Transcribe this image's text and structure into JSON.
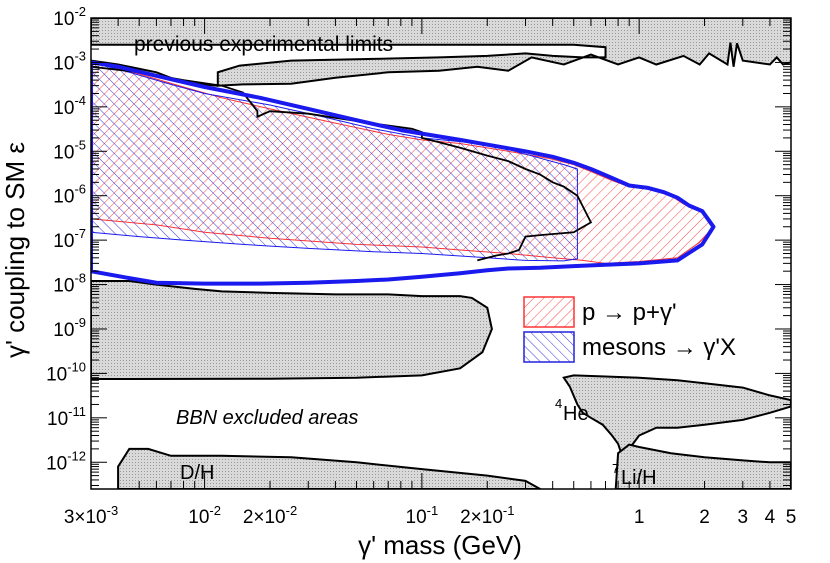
{
  "chart_data": {
    "type": "area",
    "title": "",
    "xlabel": "γ' mass (GeV)",
    "ylabel": "γ' coupling to SM ε",
    "xscale": "log",
    "yscale": "log",
    "xlim": [
      0.003,
      5
    ],
    "ylim": [
      2.5e-13,
      0.01
    ],
    "x_ticks": [
      {
        "v": 0.003,
        "base": "3×10",
        "exp": "-3"
      },
      {
        "v": 0.01,
        "base": "10",
        "exp": "-2"
      },
      {
        "v": 0.02,
        "base": "2×10",
        "exp": "-2"
      },
      {
        "v": 0.1,
        "base": "10",
        "exp": "-1"
      },
      {
        "v": 0.2,
        "base": "2×10",
        "exp": "-1"
      },
      {
        "v": 1,
        "base": "1",
        "exp": ""
      },
      {
        "v": 2,
        "base": "2",
        "exp": ""
      },
      {
        "v": 3,
        "base": "3",
        "exp": ""
      },
      {
        "v": 4,
        "base": "4",
        "exp": ""
      },
      {
        "v": 5,
        "base": "5",
        "exp": ""
      }
    ],
    "y_ticks": [
      {
        "v": 0.01,
        "base": "10",
        "exp": "-2"
      },
      {
        "v": 0.001,
        "base": "10",
        "exp": "-3"
      },
      {
        "v": 0.0001,
        "base": "10",
        "exp": "-4"
      },
      {
        "v": 1e-05,
        "base": "10",
        "exp": "-5"
      },
      {
        "v": 1e-06,
        "base": "10",
        "exp": "-6"
      },
      {
        "v": 1e-07,
        "base": "10",
        "exp": "-7"
      },
      {
        "v": 1e-08,
        "base": "10",
        "exp": "-8"
      },
      {
        "v": 1e-09,
        "base": "10",
        "exp": "-9"
      },
      {
        "v": 1e-10,
        "base": "10",
        "exp": "-10"
      },
      {
        "v": 1e-11,
        "base": "10",
        "exp": "-11"
      },
      {
        "v": 1e-12,
        "base": "10",
        "exp": "-12"
      }
    ],
    "legend": {
      "position": "right-middle",
      "entries": [
        {
          "label": "p → p+γ'",
          "color": "#ff3333"
        },
        {
          "label": "mesons → γ'X",
          "color": "#2222dd"
        }
      ]
    },
    "annotations": {
      "previous": "previous experimental limits",
      "bbn": "BBN excluded areas",
      "dh": "D/H",
      "he_sup": "4",
      "he": "He",
      "li_sup": "7",
      "li": "Li/H"
    },
    "colors": {
      "excluded_fill": "#dddddd",
      "outline": "#000000",
      "meson": "#1a1aee",
      "brem": "#ff3333"
    },
    "regions": {
      "previous_limits": [
        [
          0.003,
          0.01
        ],
        [
          5,
          0.01
        ],
        [
          5,
          0.001
        ],
        [
          4.6,
          0.0009
        ],
        [
          4.3,
          0.0013
        ],
        [
          4.0,
          0.0009
        ],
        [
          3.0,
          0.0011
        ],
        [
          2.82,
          0.0027
        ],
        [
          2.72,
          0.0008
        ],
        [
          2.63,
          0.0028
        ],
        [
          2.55,
          0.0009
        ],
        [
          2.1,
          0.0016
        ],
        [
          1.9,
          0.0009
        ],
        [
          1.6,
          0.0014
        ],
        [
          1.2,
          0.0009
        ],
        [
          1.0,
          0.0013
        ],
        [
          0.8,
          0.0009
        ],
        [
          0.6,
          0.0015
        ],
        [
          0.45,
          0.0009
        ],
        [
          0.32,
          0.0013
        ],
        [
          0.25,
          0.00065
        ],
        [
          0.18,
          0.0008
        ],
        [
          0.12,
          0.00065
        ],
        [
          0.07,
          0.0006
        ],
        [
          0.04,
          0.00045
        ],
        [
          0.025,
          0.00033
        ],
        [
          0.015,
          0.00032
        ],
        [
          0.0115,
          0.0003
        ],
        [
          0.0115,
          0.0006
        ],
        [
          0.0145,
          0.00085
        ],
        [
          0.025,
          0.0011
        ],
        [
          0.06,
          0.0012
        ],
        [
          0.12,
          0.0013
        ],
        [
          0.2,
          0.0014
        ],
        [
          0.3,
          0.0016
        ],
        [
          0.4,
          0.0014
        ],
        [
          0.55,
          0.0013
        ],
        [
          0.7,
          0.0013
        ],
        [
          0.7,
          0.0022
        ],
        [
          0.5,
          0.0025
        ],
        [
          0.3,
          0.0025
        ],
        [
          0.003,
          0.0025
        ]
      ],
      "prev_lower_edge": [
        [
          0.003,
          0.0011
        ],
        [
          0.004,
          0.0009
        ],
        [
          0.006,
          0.0006
        ],
        [
          0.008,
          0.00035
        ],
        [
          0.0115,
          0.0003
        ]
      ],
      "bbn_main": [
        [
          0.003,
          1.2e-08
        ],
        [
          0.0045,
          1.2e-08
        ],
        [
          0.006,
          1e-08
        ],
        [
          0.009,
          8e-09
        ],
        [
          0.012,
          7e-09
        ],
        [
          0.02,
          6.5e-09
        ],
        [
          0.04,
          6e-09
        ],
        [
          0.07,
          6e-09
        ],
        [
          0.1,
          5.5e-09
        ],
        [
          0.15,
          5.5e-09
        ],
        [
          0.17,
          5e-09
        ],
        [
          0.2,
          3e-09
        ],
        [
          0.21,
          1e-09
        ],
        [
          0.19,
          3e-10
        ],
        [
          0.15,
          1.3e-10
        ],
        [
          0.1,
          9e-11
        ],
        [
          0.05,
          8e-11
        ],
        [
          0.02,
          7.6e-11
        ],
        [
          0.003,
          7.5e-11
        ]
      ],
      "bbn_dh": [
        [
          0.004,
          2.5e-13
        ],
        [
          0.004,
          8e-13
        ],
        [
          0.0045,
          2e-12
        ],
        [
          0.0055,
          2e-12
        ],
        [
          0.007,
          1.4e-12
        ],
        [
          0.012,
          1.4e-12
        ],
        [
          0.025,
          1.3e-12
        ],
        [
          0.05,
          1e-12
        ],
        [
          0.1,
          7e-13
        ],
        [
          0.2,
          5e-13
        ],
        [
          0.3,
          3.8e-13
        ],
        [
          0.35,
          2.5e-13
        ]
      ],
      "bbn_he": [
        [
          0.45,
          8e-11
        ],
        [
          0.48,
          5e-11
        ],
        [
          0.52,
          2e-11
        ],
        [
          0.55,
          1.3e-11
        ],
        [
          0.6,
          1e-11
        ],
        [
          0.68,
          7e-12
        ],
        [
          0.75,
          4e-12
        ],
        [
          0.8,
          2.6e-12
        ],
        [
          0.83,
          1.5e-12
        ],
        [
          0.9,
          2e-12
        ],
        [
          1.0,
          4e-12
        ],
        [
          1.2,
          6e-12
        ],
        [
          1.5,
          6e-12
        ],
        [
          2.0,
          7e-12
        ],
        [
          3.0,
          9e-12
        ],
        [
          4.0,
          1.3e-11
        ],
        [
          5.0,
          1.8e-11
        ],
        [
          5.0,
          2.5e-11
        ],
        [
          4.0,
          3.2e-11
        ],
        [
          3.0,
          4.8e-11
        ],
        [
          2.0,
          6e-11
        ],
        [
          1.5,
          7e-11
        ],
        [
          1.0,
          8e-11
        ],
        [
          0.7,
          8.5e-11
        ],
        [
          0.5,
          9e-11
        ]
      ],
      "bbn_li": [
        [
          0.78,
          2.5e-13
        ],
        [
          0.8,
          1.6e-12
        ],
        [
          0.9,
          2.5e-12
        ],
        [
          1.0,
          2.2e-12
        ],
        [
          1.4,
          1.6e-12
        ],
        [
          2.0,
          1.3e-12
        ],
        [
          3.0,
          1.1e-12
        ],
        [
          4.0,
          1e-12
        ],
        [
          5.0,
          1e-12
        ],
        [
          5.0,
          2.5e-13
        ]
      ],
      "meson_region": [
        [
          0.003,
          0.001
        ],
        [
          0.0045,
          0.0006
        ],
        [
          0.007,
          0.00032
        ],
        [
          0.01,
          0.0002
        ],
        [
          0.02,
          0.00011
        ],
        [
          0.035,
          6e-05
        ],
        [
          0.06,
          3.2e-05
        ],
        [
          0.1,
          2e-05
        ],
        [
          0.16,
          1.6e-05
        ],
        [
          0.25,
          1.1e-05
        ],
        [
          0.35,
          7e-06
        ],
        [
          0.45,
          5e-06
        ],
        [
          0.52,
          4e-06
        ],
        [
          0.52,
          1e-06
        ],
        [
          0.52,
          2.5e-07
        ],
        [
          0.52,
          3.8e-08
        ],
        [
          0.45,
          3.4e-08
        ],
        [
          0.3,
          3.5e-08
        ],
        [
          0.2,
          4e-08
        ],
        [
          0.1,
          5e-08
        ],
        [
          0.06,
          5.5e-08
        ],
        [
          0.03,
          6.5e-08
        ],
        [
          0.015,
          8e-08
        ],
        [
          0.008,
          1e-07
        ],
        [
          0.005,
          1.2e-07
        ],
        [
          0.003,
          1.5e-07
        ]
      ],
      "brem_region": [
        [
          0.003,
          0.001
        ],
        [
          0.005,
          0.00055
        ],
        [
          0.008,
          0.00028
        ],
        [
          0.012,
          0.00016
        ],
        [
          0.02,
          9e-05
        ],
        [
          0.04,
          4.3e-05
        ],
        [
          0.07,
          2.4e-05
        ],
        [
          0.1,
          1.8e-05
        ],
        [
          0.15,
          1.5e-05
        ],
        [
          0.25,
          1e-05
        ],
        [
          0.38,
          7e-06
        ],
        [
          0.5,
          5e-06
        ],
        [
          0.6,
          3.5e-06
        ],
        [
          0.75,
          2.2e-06
        ],
        [
          0.9,
          1.6e-06
        ],
        [
          1.1,
          1.4e-06
        ],
        [
          1.4,
          1e-06
        ],
        [
          1.6,
          6.5e-07
        ],
        [
          1.9,
          5e-07
        ],
        [
          2.2,
          2e-07
        ],
        [
          1.9,
          9e-08
        ],
        [
          1.5,
          4e-08
        ],
        [
          1.0,
          3.3e-08
        ],
        [
          0.7,
          3e-08
        ],
        [
          0.55,
          3.5e-08
        ],
        [
          0.4,
          4e-08
        ],
        [
          0.25,
          5e-08
        ],
        [
          0.15,
          6e-08
        ],
        [
          0.1,
          7e-08
        ],
        [
          0.05,
          8e-08
        ],
        [
          0.02,
          1.1e-07
        ],
        [
          0.01,
          1.5e-07
        ],
        [
          0.006,
          2.2e-07
        ],
        [
          0.003,
          3e-07
        ]
      ],
      "envelope": [
        [
          0.003,
          0.001
        ],
        [
          0.004,
          0.0008
        ],
        [
          0.006,
          0.0005
        ],
        [
          0.01,
          0.00028
        ],
        [
          0.018,
          0.00016
        ],
        [
          0.03,
          9e-05
        ],
        [
          0.05,
          5e-05
        ],
        [
          0.08,
          3e-05
        ],
        [
          0.1,
          2.5e-05
        ],
        [
          0.15,
          1.8e-05
        ],
        [
          0.22,
          1.3e-05
        ],
        [
          0.3,
          1e-05
        ],
        [
          0.4,
          7.5e-06
        ],
        [
          0.5,
          5.5e-06
        ],
        [
          0.6,
          4e-06
        ],
        [
          0.75,
          2.5e-06
        ],
        [
          0.9,
          1.7e-06
        ],
        [
          1.1,
          1.5e-06
        ],
        [
          1.3,
          1.2e-06
        ],
        [
          1.5,
          9e-07
        ],
        [
          1.7,
          6e-07
        ],
        [
          1.95,
          4.5e-07
        ],
        [
          2.2,
          2e-07
        ],
        [
          1.95,
          8e-08
        ],
        [
          1.5,
          3.5e-08
        ],
        [
          1.0,
          3e-08
        ],
        [
          0.7,
          2.8e-08
        ],
        [
          0.5,
          2.6e-08
        ],
        [
          0.35,
          2.4e-08
        ],
        [
          0.25,
          2.3e-08
        ],
        [
          0.2,
          2.1e-08
        ],
        [
          0.15,
          1.8e-08
        ],
        [
          0.1,
          1.5e-08
        ],
        [
          0.07,
          1.3e-08
        ],
        [
          0.05,
          1.2e-08
        ],
        [
          0.03,
          1.1e-08
        ],
        [
          0.018,
          1.05e-08
        ],
        [
          0.01,
          1.05e-08
        ],
        [
          0.006,
          1.1e-08
        ],
        [
          0.0045,
          1.4e-08
        ],
        [
          0.003,
          2e-08
        ]
      ],
      "inner_black_boundary": [
        [
          0.003,
          0.0008
        ],
        [
          0.005,
          0.0006
        ],
        [
          0.008,
          0.0004
        ],
        [
          0.012,
          0.0003
        ],
        [
          0.015,
          0.00021
        ],
        [
          0.016,
          0.00014
        ],
        [
          0.0175,
          8e-05
        ],
        [
          0.0175,
          6e-05
        ],
        [
          0.02,
          8e-05
        ],
        [
          0.03,
          7e-05
        ],
        [
          0.06,
          4.2e-05
        ],
        [
          0.09,
          3.2e-05
        ],
        [
          0.1,
          2.7e-05
        ],
        [
          0.1,
          2e-05
        ],
        [
          0.12,
          1.6e-05
        ],
        [
          0.15,
          1.2e-05
        ],
        [
          0.2,
          8e-06
        ],
        [
          0.25,
          6e-06
        ],
        [
          0.3,
          4e-06
        ],
        [
          0.35,
          3e-06
        ],
        [
          0.4,
          2e-06
        ],
        [
          0.45,
          1.6e-06
        ],
        [
          0.52,
          1e-06
        ],
        [
          0.6,
          2.5e-07
        ],
        [
          0.5,
          1.5e-07
        ],
        [
          0.35,
          1.3e-07
        ],
        [
          0.3,
          1.2e-07
        ],
        [
          0.28,
          6e-08
        ],
        [
          0.25,
          5e-08
        ],
        [
          0.22,
          4.5e-08
        ],
        [
          0.18,
          3.5e-08
        ]
      ]
    }
  }
}
